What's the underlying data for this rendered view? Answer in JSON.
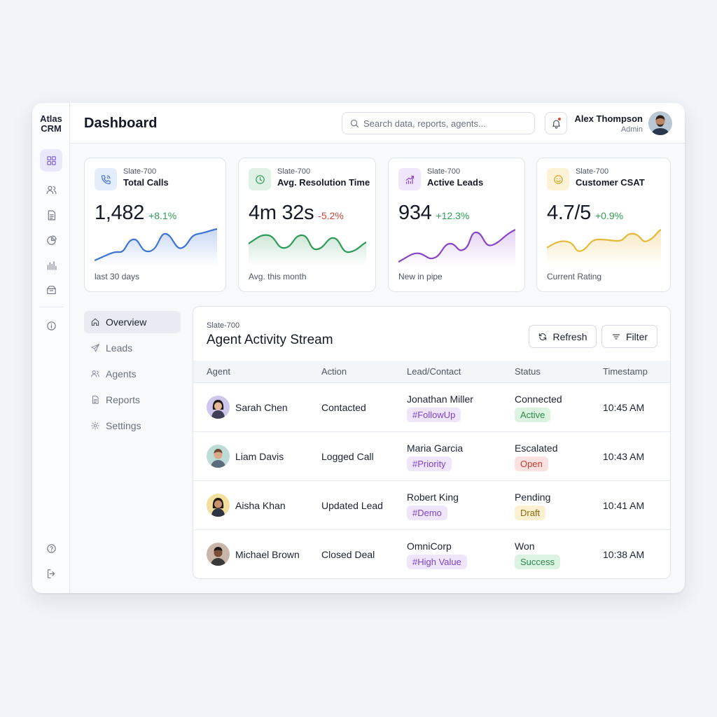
{
  "app": {
    "brand_line1": "Atlas",
    "brand_line2": "CRM"
  },
  "header": {
    "title": "Dashboard",
    "search_placeholder": "Search data, reports, agents...",
    "user_name": "Alex Thompson",
    "user_role": "Admin"
  },
  "rail": {
    "icons": [
      "dashboard-grid-icon",
      "users-icon",
      "document-icon",
      "pie-chart-icon",
      "bar-chart-icon",
      "inbox-icon",
      "info-icon",
      "help-icon",
      "logout-icon"
    ],
    "active": "dashboard-grid-icon"
  },
  "stats": [
    {
      "tag": "Slate-700",
      "name": "Total Calls",
      "value": "1,482",
      "delta": "+8.1%",
      "trend": "up",
      "footer": "last 30 days",
      "icon": "phone-icon",
      "color": "#3d74d6"
    },
    {
      "tag": "Slate-700",
      "name": "Avg. Resolution Time",
      "value": "4m 32s",
      "delta": "-5.2%",
      "trend": "down",
      "footer": "Avg. this month",
      "icon": "clock-icon",
      "color": "#2f9a57"
    },
    {
      "tag": "Slate-700",
      "name": "Active Leads",
      "value": "934",
      "delta": "+12.3%",
      "trend": "up",
      "footer": "New in pipe",
      "icon": "growth-icon",
      "color": "#8a45c6"
    },
    {
      "tag": "Slate-700",
      "name": "Customer CSAT",
      "value": "4.7/5",
      "delta": "+0.9%",
      "trend": "up",
      "footer": "Current Rating",
      "icon": "smile-icon",
      "color": "#e6b93a"
    }
  ],
  "subnav": {
    "items": [
      {
        "label": "Overview",
        "icon": "home-icon",
        "active": true
      },
      {
        "label": "Leads",
        "icon": "send-icon",
        "active": false
      },
      {
        "label": "Agents",
        "icon": "users-icon",
        "active": false
      },
      {
        "label": "Reports",
        "icon": "document-icon",
        "active": false
      },
      {
        "label": "Settings",
        "icon": "gear-icon",
        "active": false
      }
    ]
  },
  "activity": {
    "tag": "Slate-700",
    "title": "Agent Activity Stream",
    "refresh_label": "Refresh",
    "filter_label": "Filter",
    "columns": [
      "Agent",
      "Action",
      "Lead/Contact",
      "Status",
      "Timestamp"
    ],
    "rows": [
      {
        "agent": "Sarah Chen",
        "action": "Contacted",
        "lead": "Jonathan Miller",
        "hashtag": "#FollowUp",
        "status": "Connected",
        "pill": "Active",
        "pill_color": "green",
        "time": "10:45 AM"
      },
      {
        "agent": "Liam Davis",
        "action": "Logged Call",
        "lead": "Maria Garcia",
        "hashtag": "#Priority",
        "status": "Escalated",
        "pill": "Open",
        "pill_color": "red",
        "time": "10:43 AM"
      },
      {
        "agent": "Aisha Khan",
        "action": "Updated Lead",
        "lead": "Robert King",
        "hashtag": "#Demo",
        "status": "Pending",
        "pill": "Draft",
        "pill_color": "amber",
        "time": "10:41 AM"
      },
      {
        "agent": "Michael Brown",
        "action": "Closed Deal",
        "lead": "OmniCorp",
        "hashtag": "#High Value",
        "status": "Won",
        "pill": "Success",
        "pill_color": "green",
        "time": "10:38 AM"
      }
    ]
  }
}
